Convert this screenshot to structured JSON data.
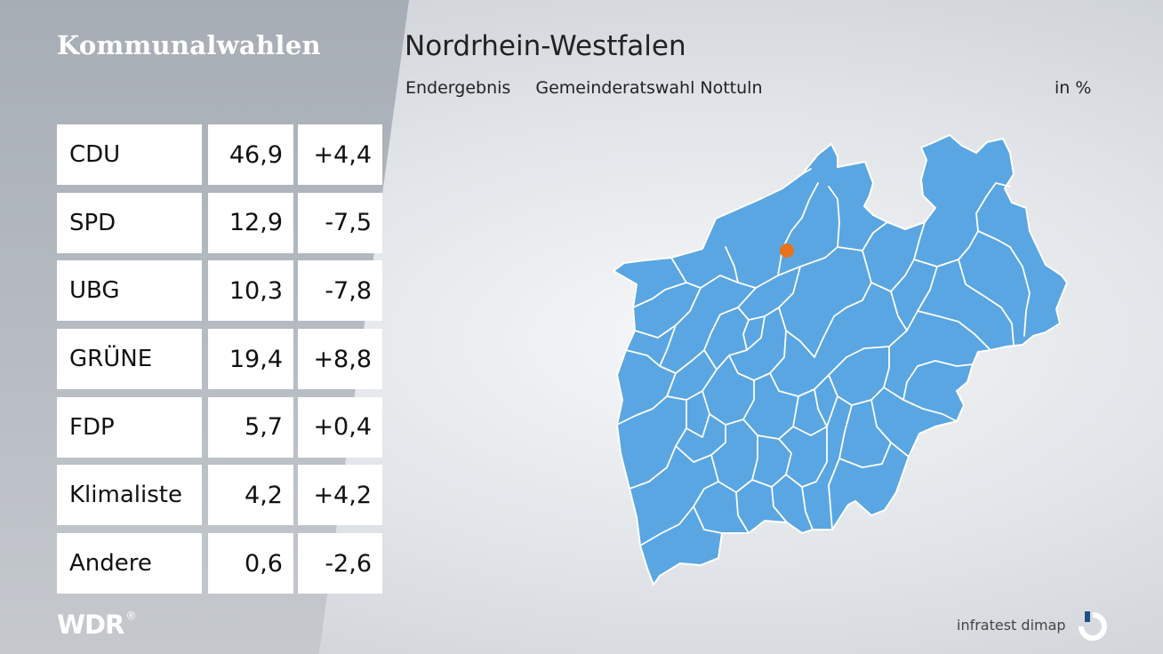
{
  "header": {
    "section_title": "Kommunalwahlen",
    "region_title": "Nordrhein-Westfalen",
    "subtitle_label": "Endergebnis",
    "subtitle_election": "Gemeinderatswahl Nottuln",
    "unit": "in %"
  },
  "results": [
    {
      "party": "CDU",
      "value": "46,9",
      "change": "+4,4"
    },
    {
      "party": "SPD",
      "value": "12,9",
      "change": "-7,5"
    },
    {
      "party": "UBG",
      "value": "10,3",
      "change": "-7,8"
    },
    {
      "party": "GRÜNE",
      "value": "19,4",
      "change": "+8,8"
    },
    {
      "party": "FDP",
      "value": "5,7",
      "change": "+0,4"
    },
    {
      "party": "Klimaliste",
      "value": "4,2",
      "change": "+4,2"
    },
    {
      "party": "Andere",
      "value": "0,6",
      "change": "-2,6"
    }
  ],
  "map": {
    "fill_color": "#5aa6e2",
    "border_color": "#ffffff",
    "marker_color": "#e8731a"
  },
  "footer": {
    "broadcaster_logo": "WDR",
    "source": "infratest dimap"
  }
}
